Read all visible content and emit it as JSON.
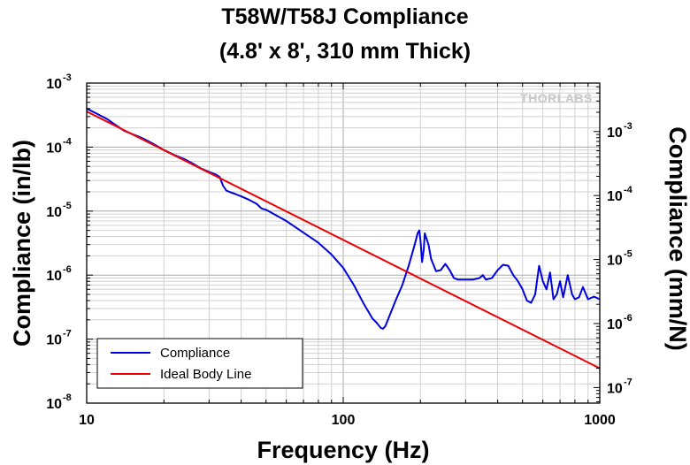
{
  "chart_data": {
    "type": "line",
    "title": "T58W/T58J Compliance",
    "subtitle": "(4.8' x 8', 310 mm Thick)",
    "xlabel": "Frequency (Hz)",
    "ylabel_left": "Compliance (in/lb)",
    "ylabel_right": "Compliance (mm/N)",
    "x_scale": "log",
    "y_scale": "log",
    "xlim": [
      10,
      1000
    ],
    "ylim_left": [
      1e-08,
      0.001
    ],
    "ylim_right_mm_per_N": [
      5.71e-08,
      0.00571
    ],
    "x_ticks": [
      "10",
      "100",
      "1000"
    ],
    "y_ticks_left": [
      {
        "base": "10",
        "exp": "-8",
        "value": 1e-08
      },
      {
        "base": "10",
        "exp": "-7",
        "value": 1e-07
      },
      {
        "base": "10",
        "exp": "-6",
        "value": 1e-06
      },
      {
        "base": "10",
        "exp": "-5",
        "value": 1e-05
      },
      {
        "base": "10",
        "exp": "-4",
        "value": 0.0001
      },
      {
        "base": "10",
        "exp": "-3",
        "value": 0.001
      }
    ],
    "y_ticks_right": [
      {
        "base": "10",
        "exp": "-7",
        "value": 1e-07
      },
      {
        "base": "10",
        "exp": "-6",
        "value": 1e-06
      },
      {
        "base": "10",
        "exp": "-5",
        "value": 1e-05
      },
      {
        "base": "10",
        "exp": "-4",
        "value": 0.0001
      },
      {
        "base": "10",
        "exp": "-3",
        "value": 0.001
      }
    ],
    "grid": true,
    "legend_position": "bottom-left",
    "watermark": "THORLABS",
    "series": [
      {
        "name": "Compliance",
        "color": "#0000dd",
        "x": [
          10,
          11,
          12,
          13,
          14,
          15,
          16,
          17,
          18,
          20,
          22,
          24,
          26,
          28,
          30,
          32,
          33,
          34,
          35,
          36,
          38,
          40,
          43,
          46,
          48,
          50,
          55,
          60,
          70,
          80,
          90,
          100,
          110,
          120,
          130,
          135,
          140,
          143,
          146,
          150,
          160,
          170,
          180,
          190,
          195,
          198,
          200,
          203,
          206,
          208,
          210,
          215,
          220,
          230,
          240,
          250,
          260,
          270,
          280,
          300,
          320,
          340,
          350,
          360,
          380,
          400,
          420,
          440,
          460,
          480,
          500,
          520,
          540,
          560,
          580,
          600,
          620,
          640,
          660,
          680,
          700,
          720,
          750,
          780,
          800,
          830,
          860,
          900,
          950,
          1000
        ],
        "y": [
          0.0004,
          0.00033,
          0.000275,
          0.00022,
          0.00018,
          0.00016,
          0.000145,
          0.00013,
          0.000115,
          9e-05,
          7.5e-05,
          6.5e-05,
          5.5e-05,
          4.6e-05,
          4.1e-05,
          3.7e-05,
          3.4e-05,
          2.5e-05,
          2.1e-05,
          2e-05,
          1.85e-05,
          1.7e-05,
          1.5e-05,
          1.3e-05,
          1.1e-05,
          1.05e-05,
          8.5e-06,
          7e-06,
          4.6e-06,
          3.2e-06,
          2.1e-06,
          1.3e-06,
          7e-07,
          3.6e-07,
          2.1e-07,
          1.8e-07,
          1.5e-07,
          1.45e-07,
          1.6e-07,
          2.1e-07,
          4e-07,
          7e-07,
          1.4e-06,
          3e-06,
          4.5e-06,
          5e-06,
          3.5e-06,
          1.6e-06,
          2.5e-06,
          4.5e-06,
          4e-06,
          3e-06,
          1.8e-06,
          1.15e-06,
          1.2e-06,
          1.5e-06,
          1.2e-06,
          9e-07,
          8.5e-07,
          8.5e-07,
          8.5e-07,
          9e-07,
          1e-06,
          8.5e-07,
          9e-07,
          1.2e-06,
          1.45e-06,
          1.4e-06,
          1e-06,
          8e-07,
          6e-07,
          4e-07,
          3.7e-07,
          5e-07,
          1.4e-06,
          8e-07,
          6e-07,
          1.1e-06,
          4.2e-07,
          5e-07,
          8e-07,
          4.5e-07,
          1e-06,
          5e-07,
          4.2e-07,
          4.5e-07,
          6.5e-07,
          4.2e-07,
          4.6e-07,
          4.2e-07
        ]
      },
      {
        "name": "Ideal Body Line",
        "color": "#ee0000",
        "x": [
          10,
          1000
        ],
        "y": [
          0.00036,
          3.5e-08
        ]
      }
    ]
  }
}
